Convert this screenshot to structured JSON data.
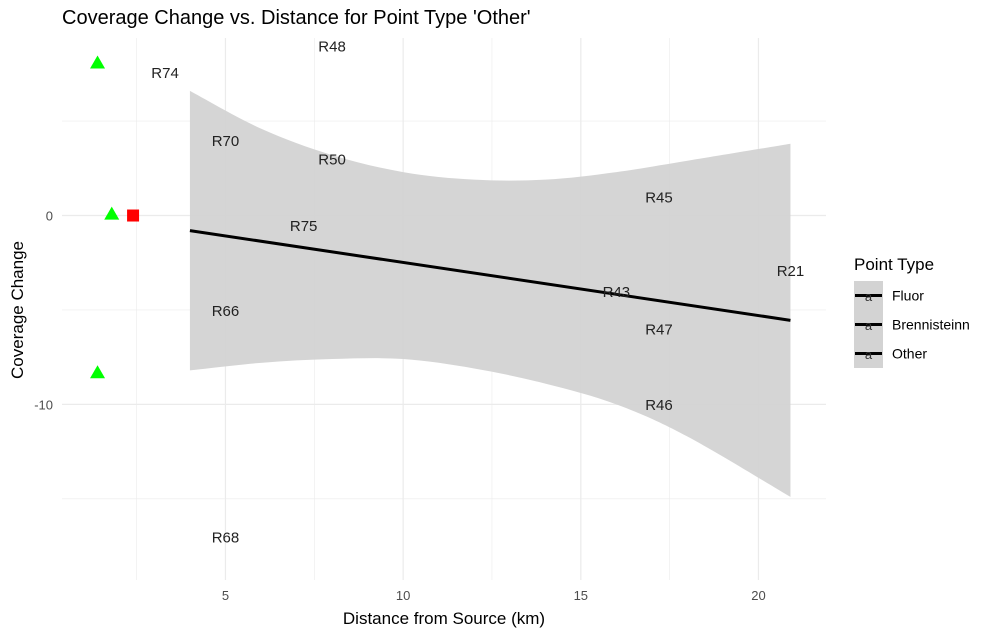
{
  "chart_data": {
    "type": "scatter",
    "title": "Coverage Change vs. Distance for Point Type 'Other'",
    "xlabel": "Distance from Source (km)",
    "ylabel": "Coverage Change",
    "xlim": [
      0.4,
      21.9
    ],
    "ylim": [
      -19.3,
      9.4
    ],
    "x_ticks": [
      5,
      10,
      15,
      20
    ],
    "y_ticks": [
      0,
      -10
    ],
    "x_minor_ticks": [
      2.5,
      7.5,
      12.5,
      17.5
    ],
    "y_minor_ticks": [
      5,
      -5,
      -15
    ],
    "grid": true,
    "colors": {
      "triangle_points": "#00ff00",
      "square_points": "#ff0000",
      "fit_line": "#000000",
      "ribbon": "#d3d3d3",
      "grid": "#ebebeb"
    },
    "points": [
      {
        "x": 1.4,
        "y": 8.1,
        "shape": "triangle"
      },
      {
        "x": 1.8,
        "y": 0.1,
        "shape": "triangle"
      },
      {
        "x": 1.4,
        "y": -8.3,
        "shape": "triangle"
      },
      {
        "x": 2.4,
        "y": 0.0,
        "shape": "square"
      }
    ],
    "trend_line": {
      "x": [
        4.0,
        20.9
      ],
      "y": [
        -0.8,
        -5.55
      ]
    },
    "confidence_band": {
      "x": [
        4.0,
        6.0,
        8.0,
        10.0,
        12.0,
        14.0,
        16.0,
        18.0,
        20.9
      ],
      "upper": [
        6.6,
        4.6,
        3.2,
        2.3,
        1.9,
        1.9,
        2.3,
        2.9,
        3.8
      ],
      "lower": [
        -8.2,
        -7.8,
        -7.6,
        -7.6,
        -8.1,
        -8.9,
        -10.0,
        -11.7,
        -14.9
      ]
    },
    "labels": [
      {
        "text": "R48",
        "x": 8.0,
        "y": 8.9
      },
      {
        "text": "R74",
        "x": 3.3,
        "y": 7.5
      },
      {
        "text": "R70",
        "x": 5.0,
        "y": 3.9
      },
      {
        "text": "R50",
        "x": 8.0,
        "y": 2.9
      },
      {
        "text": "R45",
        "x": 17.2,
        "y": 0.9
      },
      {
        "text": "R75",
        "x": 7.2,
        "y": -0.6
      },
      {
        "text": "R21",
        "x": 20.9,
        "y": -3.0
      },
      {
        "text": "R43",
        "x": 16.0,
        "y": -4.1
      },
      {
        "text": "R66",
        "x": 5.0,
        "y": -5.1
      },
      {
        "text": "R47",
        "x": 17.2,
        "y": -6.1
      },
      {
        "text": "R46",
        "x": 17.2,
        "y": -10.1
      },
      {
        "text": "R68",
        "x": 5.0,
        "y": -17.1
      }
    ],
    "legend": {
      "title": "Point Type",
      "position": "right",
      "key_glyph": "a",
      "entries": [
        "Fluor",
        "Brennisteinn",
        "Other"
      ]
    }
  }
}
